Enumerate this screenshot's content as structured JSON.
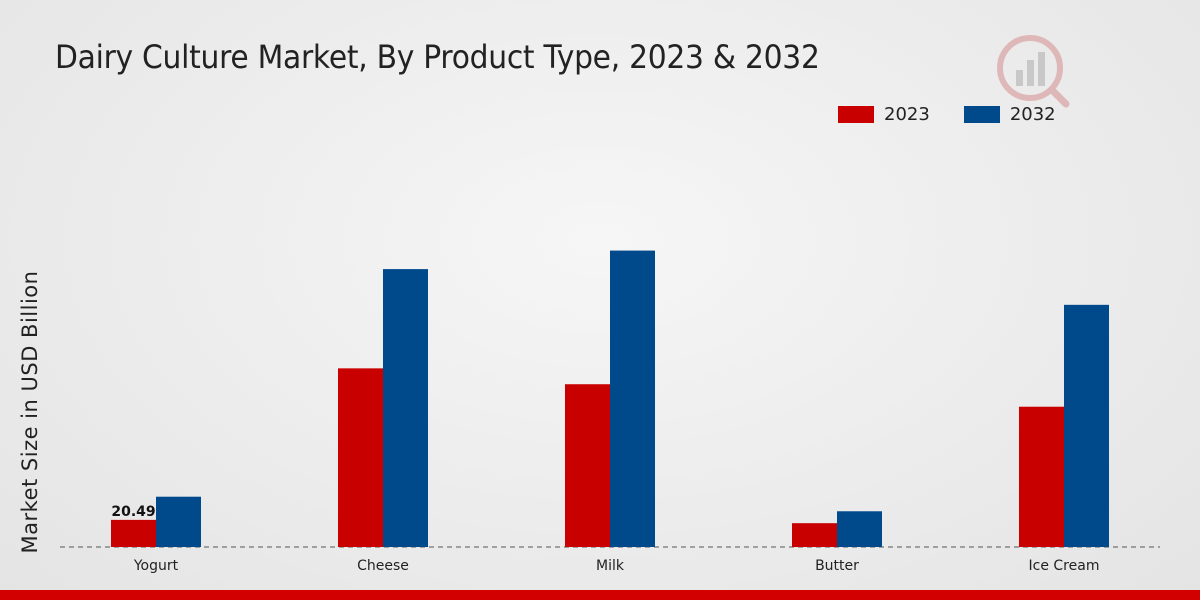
{
  "header": {
    "title": "Dairy Culture Market, By Product Type, 2023 & 2032"
  },
  "colors": {
    "series_2023": "#c80000",
    "series_2032": "#004a8c",
    "bottom_bar": "#d20000"
  },
  "chart_data": {
    "type": "bar",
    "title": "Dairy Culture Market, By Product Type, 2023 & 2032",
    "xlabel": "",
    "ylabel": "Market Size in USD Billion",
    "categories": [
      "Yogurt",
      "Cheese",
      "Milk",
      "Butter",
      "Ice Cream"
    ],
    "series": [
      {
        "name": "2023",
        "color": "#c80000",
        "values": [
          20.49,
          135,
          123,
          18,
          106
        ]
      },
      {
        "name": "2032",
        "color": "#004a8c",
        "values": [
          38,
          210,
          224,
          27,
          183
        ]
      }
    ],
    "data_labels": [
      {
        "series": "2023",
        "category": "Yogurt",
        "text": "20.49"
      }
    ],
    "ylim": [
      0,
      300
    ],
    "grid": false,
    "legend": "top-right",
    "baseline_dashed": true
  }
}
